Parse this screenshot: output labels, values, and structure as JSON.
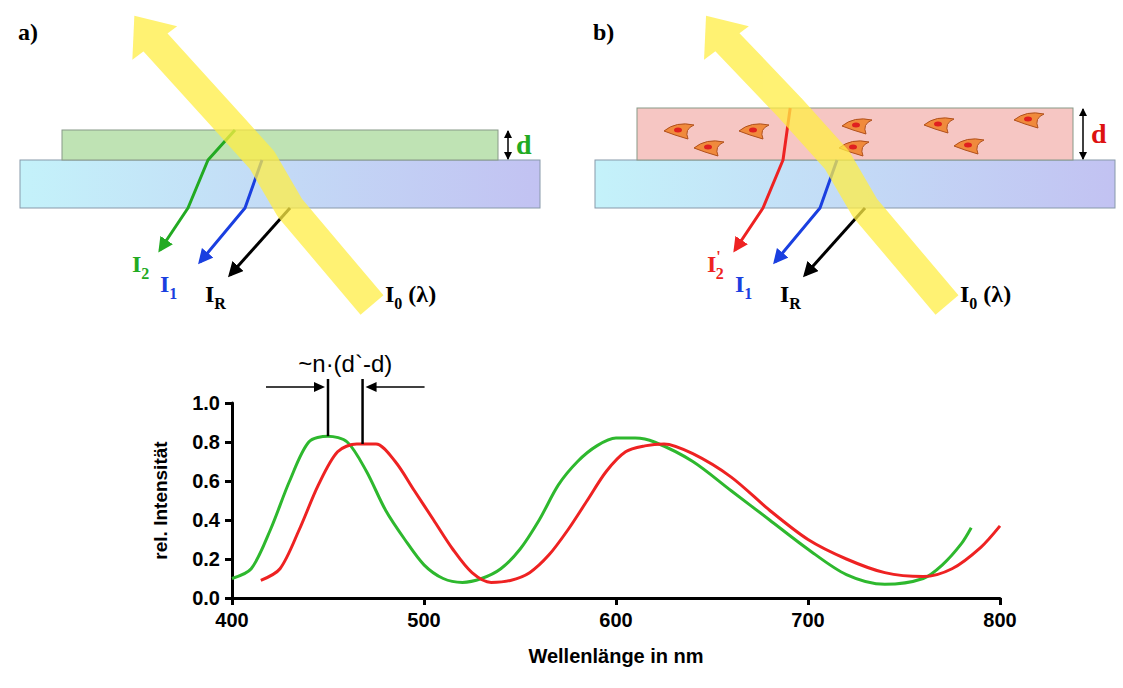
{
  "diagrams": [
    {
      "label": "a)",
      "thickness": {
        "text": "d",
        "color": "#22aa22"
      },
      "film_color": "#bfe3b4",
      "particles": false,
      "rays": [
        {
          "text": "I",
          "sub": "2",
          "color": "#22aa22"
        },
        {
          "text": "I",
          "sub": "1",
          "color": "#1a3fe0"
        },
        {
          "text": "I",
          "sub": "R",
          "color": "#000000"
        }
      ],
      "beam": {
        "text": "I",
        "sub": "0",
        "suffix": " (λ)",
        "color": "#ffee44"
      }
    },
    {
      "label": "b)",
      "thickness": {
        "text": "d",
        "color": "#dd1111"
      },
      "film_color": "#f6c6c3",
      "particles": true,
      "rays": [
        {
          "text": "I",
          "sup": "'",
          "sub": "2",
          "color": "#ee2222"
        },
        {
          "text": "I",
          "sub": "1",
          "color": "#1a3fe0"
        },
        {
          "text": "I",
          "sub": "R",
          "color": "#000000"
        }
      ],
      "beam": {
        "text": "I",
        "sub": "0",
        "suffix": " (λ)",
        "color": "#ffee44"
      }
    }
  ],
  "chart_data": {
    "type": "line",
    "xlabel": "Wellenlänge in nm",
    "ylabel": "rel. Intensität",
    "xlim": [
      400,
      800
    ],
    "xticks": [
      400,
      500,
      600,
      700,
      800
    ],
    "ylim": [
      0,
      1
    ],
    "yticks": [
      {
        "value": 0,
        "label": "0.0"
      },
      0.2,
      0.4,
      0.6,
      0.8,
      {
        "value": 1,
        "label": "1.0"
      }
    ],
    "grid": false,
    "series": [
      {
        "color": "#2eb82e",
        "x": [
          400,
          410,
          420,
          430,
          440,
          450,
          460,
          470,
          480,
          490,
          500,
          510,
          520,
          530,
          540,
          550,
          560,
          570,
          580,
          590,
          600,
          610,
          620,
          640,
          660,
          680,
          700,
          720,
          740,
          760,
          770,
          780,
          785
        ],
        "values": [
          0.1,
          0.15,
          0.35,
          0.6,
          0.8,
          0.83,
          0.8,
          0.65,
          0.45,
          0.3,
          0.17,
          0.1,
          0.08,
          0.1,
          0.15,
          0.25,
          0.4,
          0.58,
          0.7,
          0.78,
          0.82,
          0.82,
          0.8,
          0.7,
          0.55,
          0.4,
          0.25,
          0.12,
          0.07,
          0.1,
          0.17,
          0.28,
          0.36
        ]
      },
      {
        "color": "#ee2222",
        "x": [
          415,
          425,
          435,
          445,
          455,
          465,
          475,
          485,
          495,
          505,
          515,
          525,
          535,
          545,
          555,
          565,
          575,
          585,
          595,
          605,
          615,
          625,
          640,
          660,
          680,
          700,
          720,
          740,
          760,
          775,
          790,
          800
        ],
        "values": [
          0.09,
          0.15,
          0.35,
          0.58,
          0.75,
          0.79,
          0.79,
          0.7,
          0.55,
          0.4,
          0.25,
          0.13,
          0.08,
          0.09,
          0.13,
          0.22,
          0.35,
          0.5,
          0.65,
          0.75,
          0.78,
          0.79,
          0.74,
          0.62,
          0.45,
          0.3,
          0.2,
          0.13,
          0.11,
          0.15,
          0.26,
          0.37
        ]
      }
    ],
    "annotation": {
      "text": "~n·(d`-d)",
      "x": [
        450,
        468
      ]
    }
  }
}
